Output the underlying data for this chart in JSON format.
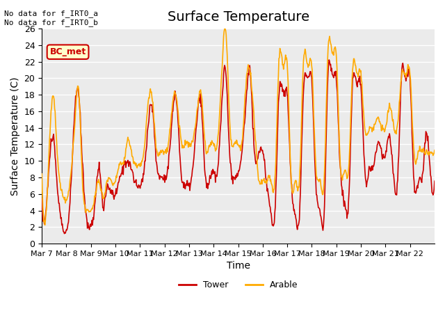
{
  "title": "Surface Temperature",
  "xlabel": "Time",
  "ylabel": "Surface Temperature (C)",
  "ylim": [
    0,
    26
  ],
  "yticks": [
    0,
    2,
    4,
    6,
    8,
    10,
    12,
    14,
    16,
    18,
    20,
    22,
    24,
    26
  ],
  "xtick_labels": [
    "Mar 7",
    "Mar 8",
    "Mar 9",
    "Mar 10",
    "Mar 11",
    "Mar 12",
    "Mar 13",
    "Mar 14",
    "Mar 15",
    "Mar 16",
    "Mar 17",
    "Mar 18",
    "Mar 19",
    "Mar 20",
    "Mar 21",
    "Mar 22"
  ],
  "tower_color": "#cc0000",
  "arable_color": "#ffaa00",
  "legend_labels": [
    "Tower",
    "Arable"
  ],
  "annotation_text": "No data for f_IRT0_a\nNo data for f_IRT0_b",
  "bc_met_label": "BC_met",
  "bc_met_bg": "#ffffcc",
  "bc_met_border": "#cc0000",
  "plot_bg": "#ebebeb",
  "grid_color": "#ffffff",
  "title_fontsize": 14,
  "label_fontsize": 10,
  "tick_fontsize": 9
}
